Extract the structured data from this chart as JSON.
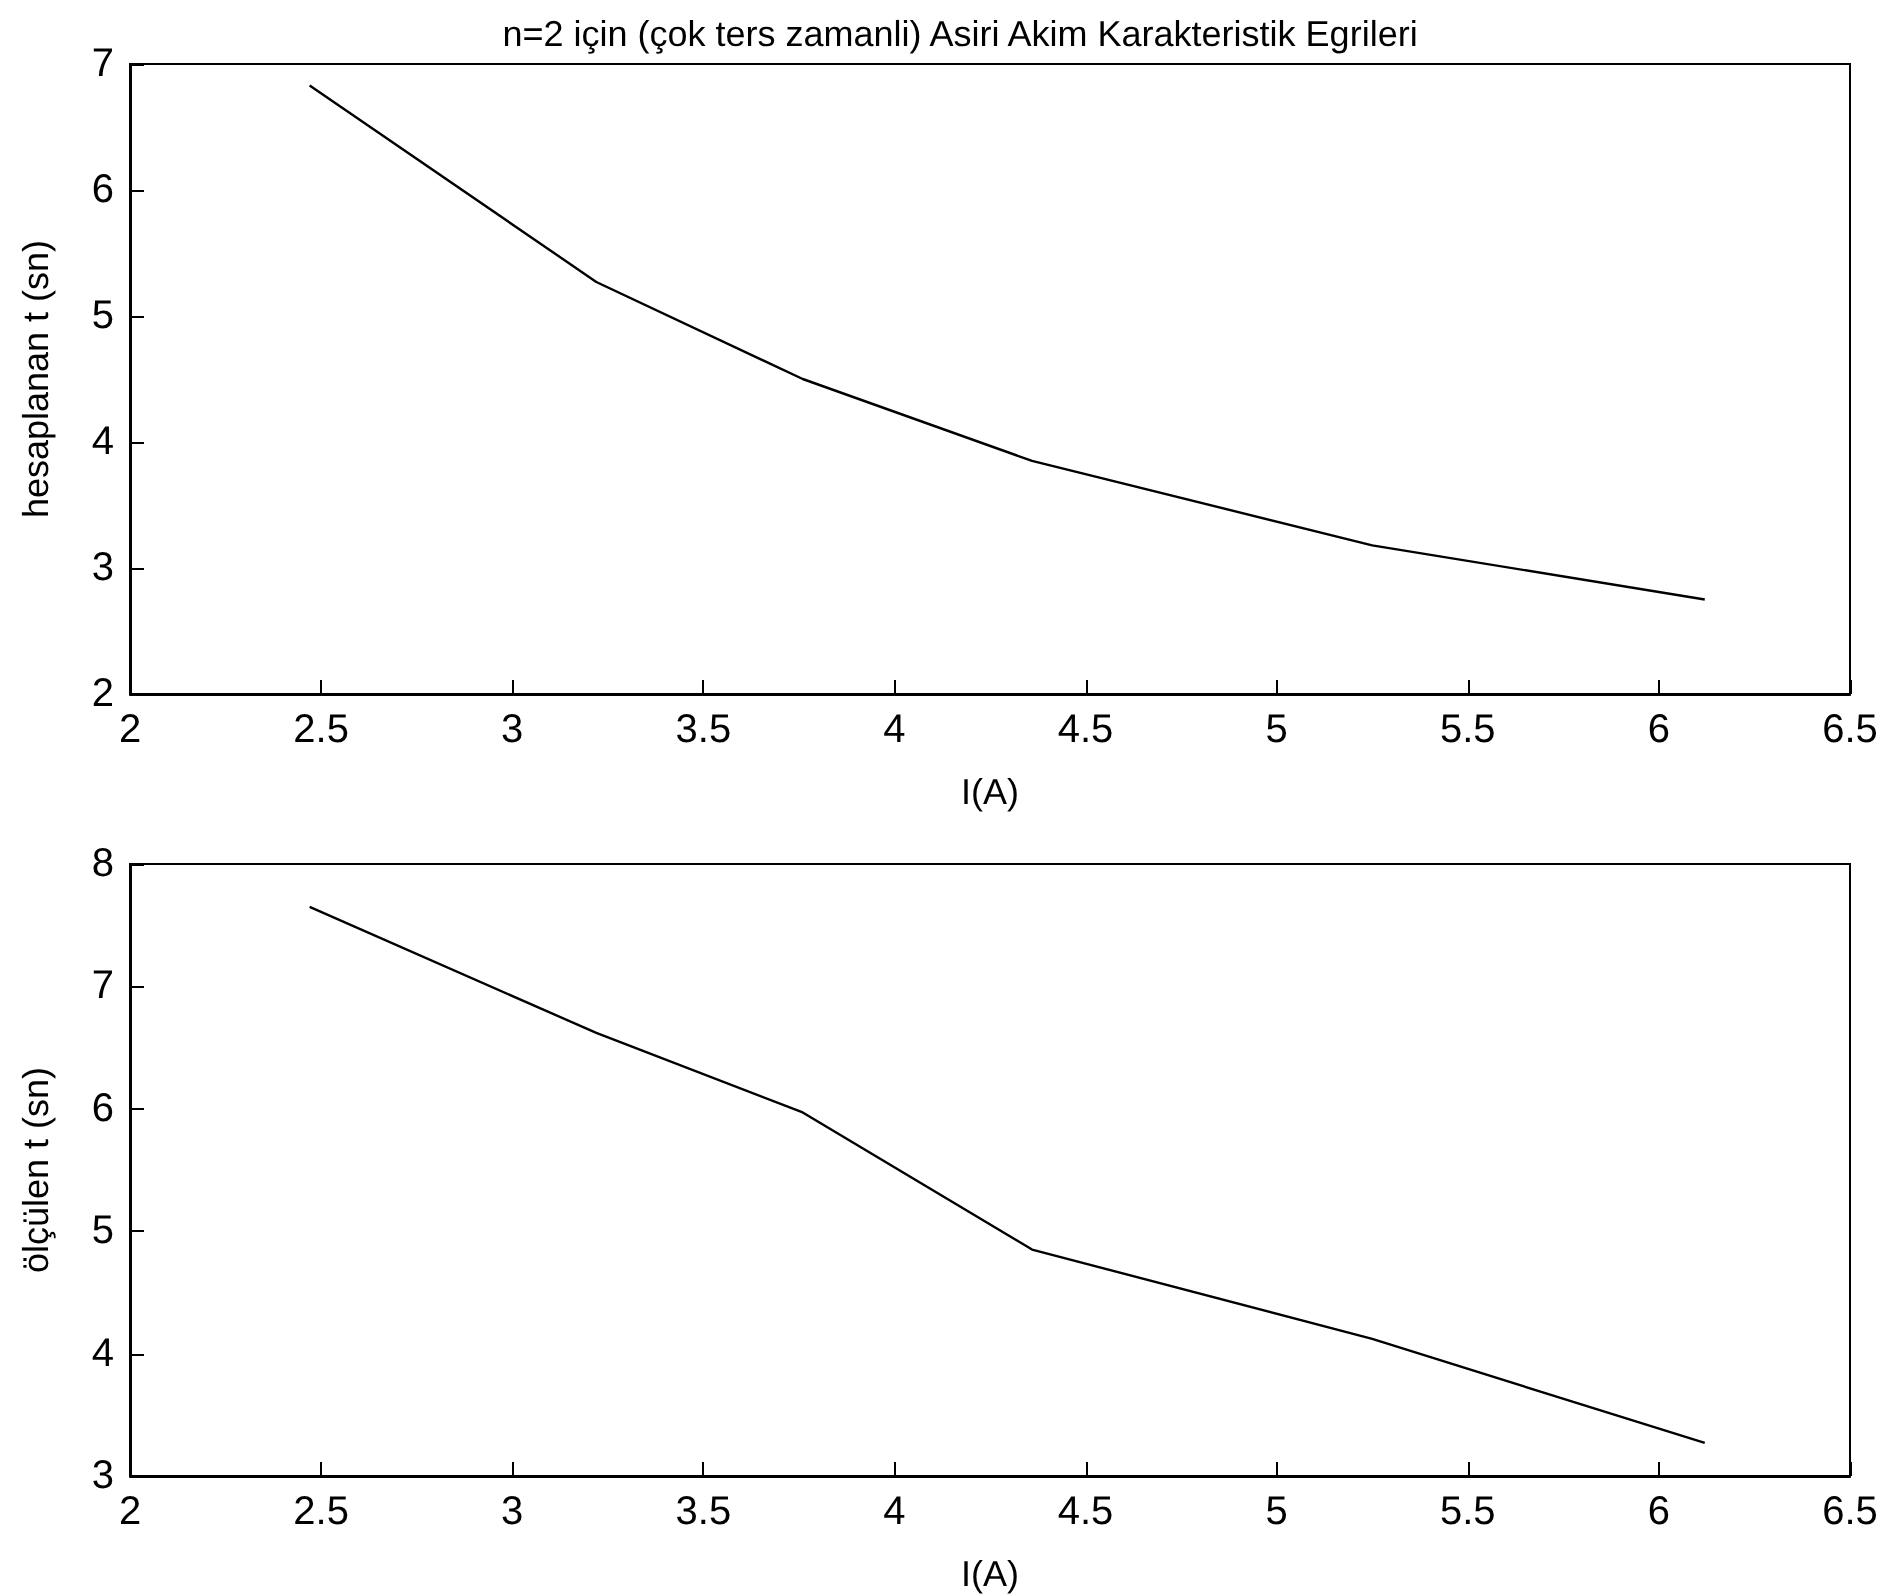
{
  "chart_data": [
    {
      "type": "line",
      "title": "n=2 için (çok ters zamanli) Asiri Akim Karakteristik Egrileri",
      "xlabel": "I(A)",
      "ylabel": "hesaplanan t (sn)",
      "x": [
        2.47,
        3.22,
        3.76,
        4.36,
        5.25,
        6.12
      ],
      "series": [
        {
          "color": "#000000",
          "values": [
            6.83,
            5.27,
            4.5,
            3.85,
            3.18,
            2.75
          ]
        }
      ],
      "xlim": [
        2,
        6.5
      ],
      "xticks": [
        2,
        2.5,
        3,
        3.5,
        4,
        4.5,
        5,
        5.5,
        6,
        6.5
      ],
      "ylim": [
        2,
        7
      ],
      "yticks": [
        2,
        3,
        4,
        5,
        6,
        7
      ],
      "grid": false
    },
    {
      "type": "line",
      "xlabel": "I(A)",
      "ylabel": "ölçülen t (sn)",
      "x": [
        2.47,
        3.22,
        3.76,
        4.36,
        5.25,
        6.12
      ],
      "series": [
        {
          "color": "#000000",
          "values": [
            7.65,
            6.62,
            5.97,
            4.85,
            4.12,
            3.27
          ]
        }
      ],
      "xlim": [
        2,
        6.5
      ],
      "xticks": [
        2,
        2.5,
        3,
        3.5,
        4,
        4.5,
        5,
        5.5,
        6,
        6.5
      ],
      "ylim": [
        3,
        8
      ],
      "yticks": [
        3,
        4,
        5,
        6,
        7,
        8
      ],
      "grid": false
    }
  ]
}
